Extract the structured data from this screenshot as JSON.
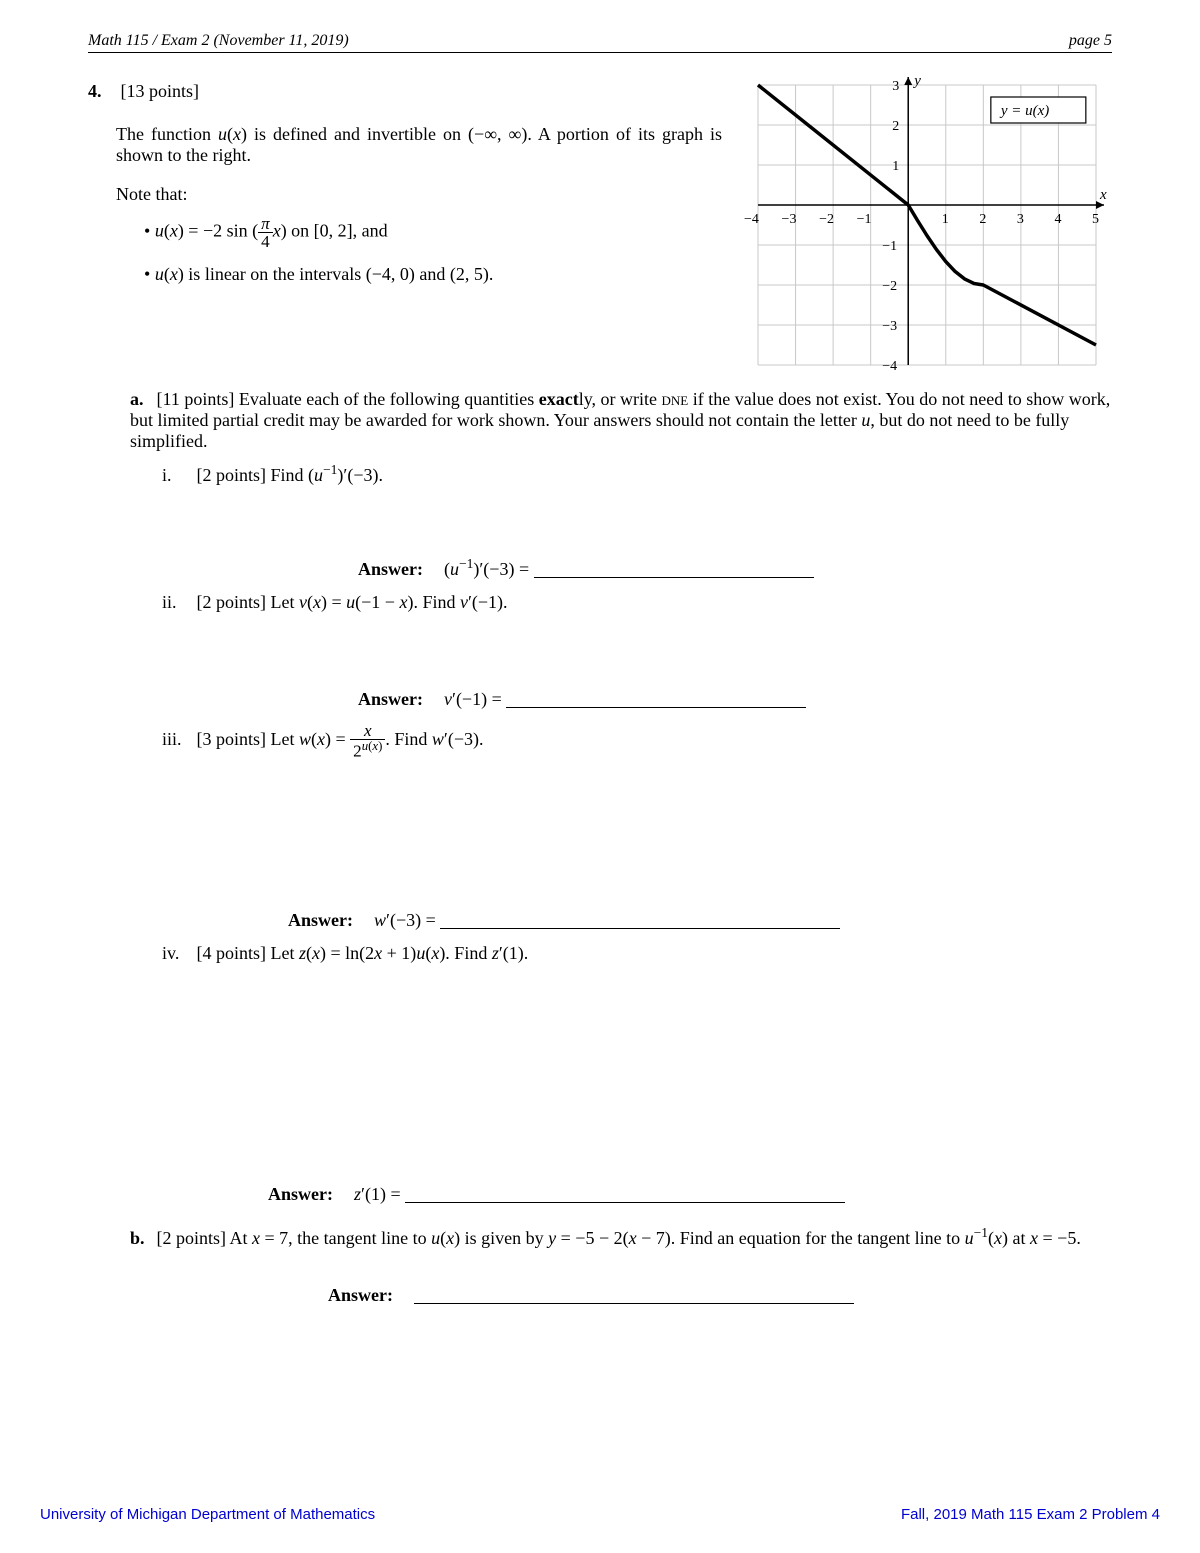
{
  "header": {
    "left": "Math 115 / Exam 2 (November 11, 2019)",
    "right": "page 5"
  },
  "question": {
    "number": "4",
    "points": "[13 points]",
    "intro": "The function u(x) is defined and invertible on (−∞, ∞). A portion of its graph is shown to the right.",
    "note_that": "Note that:",
    "bullet1_pre": "u(x) = −2 sin (",
    "bullet1_frac_n": "π",
    "bullet1_frac_d": "4",
    "bullet1_post": "x) on [0, 2], and",
    "bullet2": "u(x) is linear on the intervals (−4, 0) and (2, 5)."
  },
  "graph": {
    "x_min": -4,
    "x_max": 5,
    "y_min": -4,
    "y_max": 3,
    "x_ticks": [
      -4,
      -3,
      -2,
      -1,
      1,
      2,
      3,
      4,
      5
    ],
    "y_ticks": [
      -4,
      -3,
      -2,
      -1,
      1,
      2,
      3
    ],
    "x_label": "x",
    "y_label": "y",
    "legend": "y = u(x)",
    "grid_color": "#c8c8c8",
    "axis_color": "#000000",
    "curve_color": "#000000",
    "curve_width": 3.5,
    "polyline": [
      [
        -4,
        3
      ],
      [
        0,
        0
      ],
      [
        0.25,
        -0.3902
      ],
      [
        0.5,
        -0.7654
      ],
      [
        0.75,
        -1.1111
      ],
      [
        1,
        -1.4142
      ],
      [
        1.25,
        -1.6629
      ],
      [
        1.5,
        -1.8478
      ],
      [
        1.75,
        -1.9616
      ],
      [
        2,
        -2
      ],
      [
        5,
        -3.5
      ]
    ]
  },
  "part_a": {
    "label": "a",
    "text": "[11 points] Evaluate each of the following quantities exactly, or write DNE if the value does not exist. You do not need to show work, but limited partial credit may be awarded for work shown. Your answers should not contain the letter u, but do not need to be fully simplified.",
    "subs": {
      "i": {
        "pts": "[2 points]",
        "body": "Find (u⁻¹)′(−3).",
        "ans_expr": "(u⁻¹)′(−3) =",
        "blank": 280,
        "gap": 70
      },
      "ii": {
        "pts": "[2 points]",
        "body": "Let v(x) = u(−1 − x). Find v′(−1).",
        "ans_expr": "v′(−1) =",
        "blank": 300,
        "gap": 76
      },
      "iii": {
        "pts": "[3 points]",
        "body_pre": "Let w(x) = ",
        "frac_n": "x",
        "frac_d": "2",
        "frac_d_exp": "u(x)",
        "body_post": ". Find w′(−3).",
        "ans_expr": "w′(−3) =",
        "blank": 400,
        "gap": 150
      },
      "iv": {
        "pts": "[4 points]",
        "body": "Let z(x) = ln(2x + 1)u(x). Find z′(1).",
        "ans_expr": "z′(1) =",
        "blank": 430,
        "gap": 220
      }
    }
  },
  "part_b": {
    "label": "b",
    "text": "[2 points] At x = 7, the tangent line to u(x) is given by y = −5 − 2(x − 7). Find an equation for the tangent line to u⁻¹(x) at x = −5.",
    "ans_label": "Answer:",
    "blank": 440,
    "gap": 36
  },
  "footer": {
    "left": "University of Michigan Department of Mathematics",
    "right": "Fall, 2019 Math 115 Exam 2 Problem 4"
  }
}
